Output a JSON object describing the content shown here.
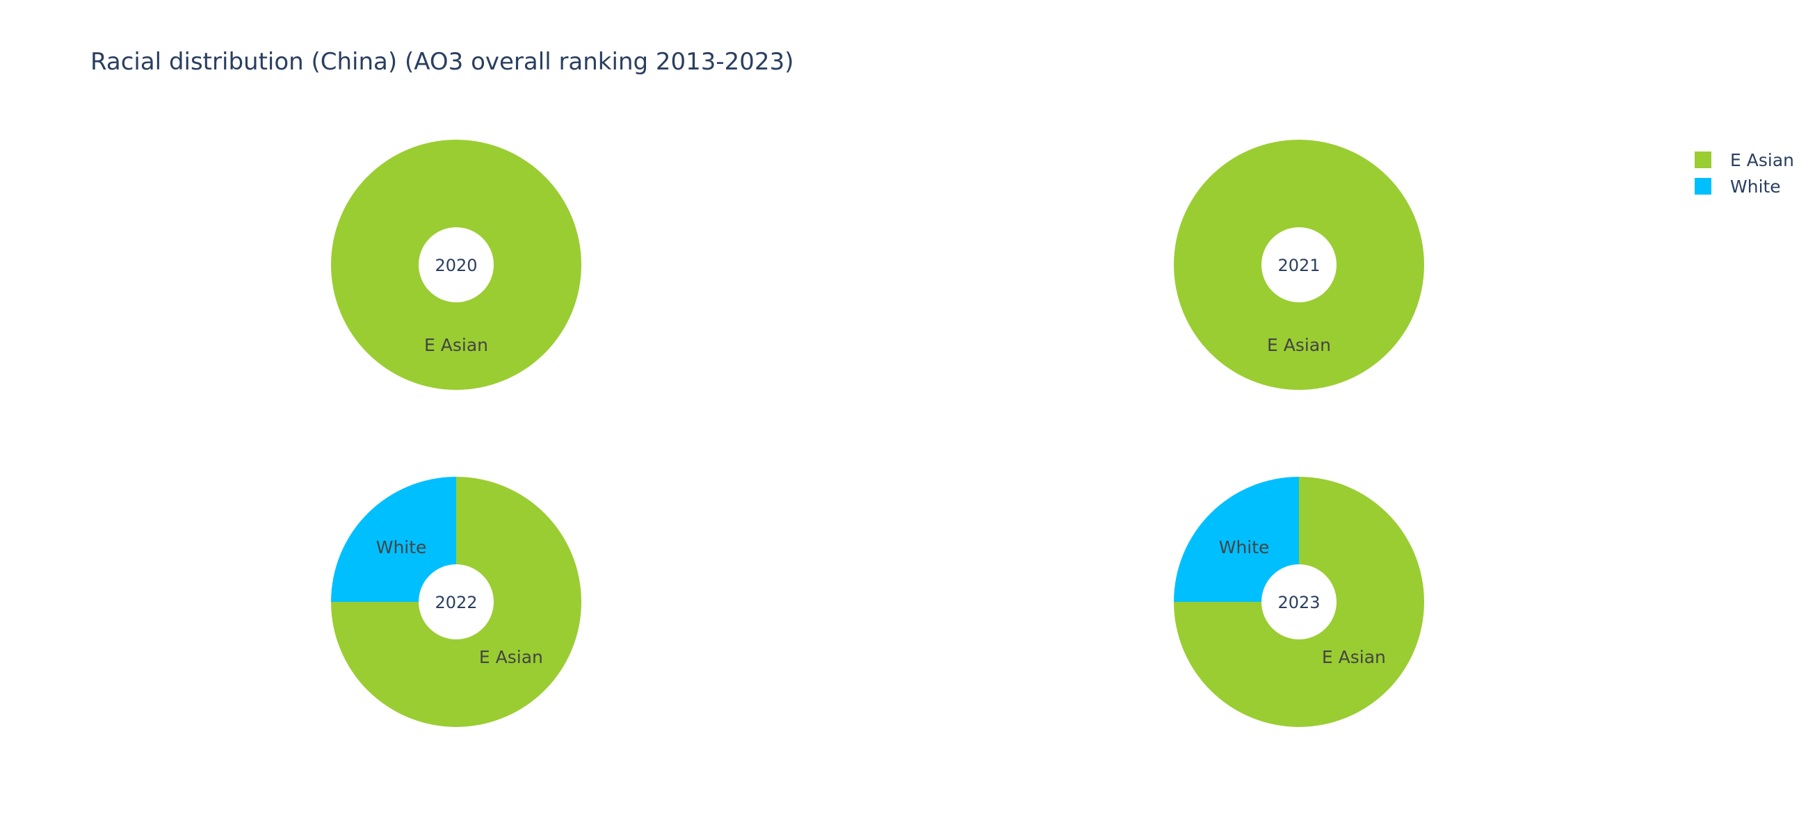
{
  "chart_data": {
    "type": "pie",
    "title": "Racial distribution (China) (AO3 overall ranking 2013-2023)",
    "legend_position": "top-right",
    "hole": 0.3,
    "colors": {
      "E Asian": "#9acd32",
      "White": "#00bfff"
    },
    "legend": [
      {
        "label": "E Asian",
        "color": "#9acd32"
      },
      {
        "label": "White",
        "color": "#00bfff"
      }
    ],
    "pies": [
      {
        "label": "2020",
        "slices": [
          {
            "name": "E Asian",
            "value": 1
          }
        ]
      },
      {
        "label": "2021",
        "slices": [
          {
            "name": "E Asian",
            "value": 1
          }
        ]
      },
      {
        "label": "2022",
        "slices": [
          {
            "name": "E Asian",
            "value": 3
          },
          {
            "name": "White",
            "value": 1
          }
        ]
      },
      {
        "label": "2023",
        "slices": [
          {
            "name": "E Asian",
            "value": 3
          },
          {
            "name": "White",
            "value": 1
          }
        ]
      }
    ]
  }
}
